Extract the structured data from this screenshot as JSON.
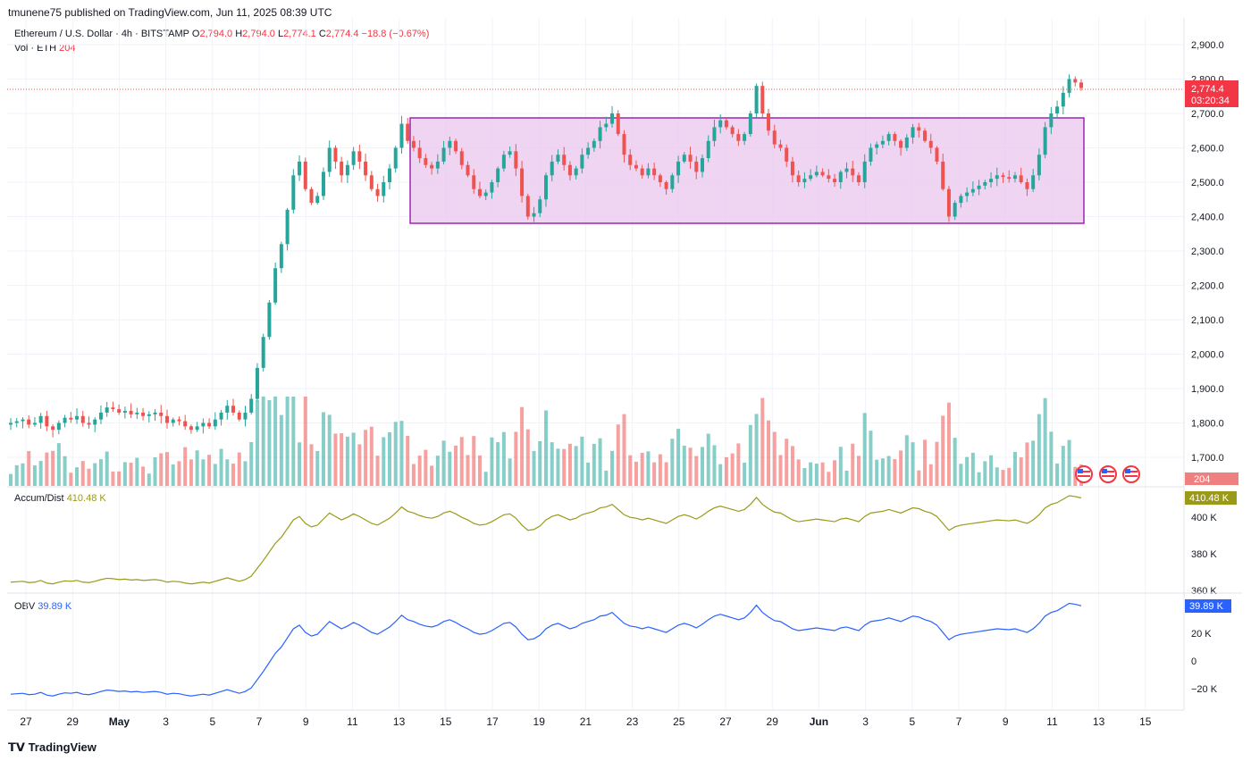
{
  "header": {
    "published": "tmunene75 published on TradingView.com, Jun 11, 2025 08:39 UTC"
  },
  "legend": {
    "symbol": "Ethereum / U.S. Dollar · 4h · BITSTAMP",
    "o_label": "O",
    "o": "2,794.0",
    "h_label": "H",
    "h": "2,794.0",
    "l_label": "L",
    "l": "2,774.1",
    "c_label": "C",
    "c": "2,774.4",
    "change": "−18.8 (−0.67%)",
    "vol_label": "Vol · ETH",
    "vol": "204"
  },
  "price_badge": {
    "price": "2,774.4",
    "countdown": "03:20:34"
  },
  "vol_badge": "204",
  "ad": {
    "label": "Accum/Dist",
    "value": "410.48 K"
  },
  "obv": {
    "label": "OBV",
    "value": "39.89 K"
  },
  "brand": "TradingView",
  "colors": {
    "up": "#26a69a",
    "down": "#ef5350",
    "box_fill": "#e9c7ee",
    "box_stroke": "#9c27b0",
    "ad": "#9a9a18",
    "obv": "#2962ff"
  },
  "chart_data": [
    {
      "type": "candlestick",
      "y_ticks": [
        "2,900.0",
        "2,800.0",
        "2,700.0",
        "2,600.0",
        "2,500.0",
        "2,400.0",
        "2,300.0",
        "2,200.0",
        "2,100.0",
        "2,000.0",
        "1,900.0",
        "1,800.0",
        "1,700.0"
      ],
      "x_ticks": [
        "27",
        "29",
        "May",
        "3",
        "5",
        "7",
        "9",
        "11",
        "13",
        "15",
        "17",
        "19",
        "21",
        "23",
        "25",
        "27",
        "29",
        "Jun",
        "3",
        "5",
        "7",
        "9",
        "11",
        "13",
        "15"
      ],
      "ylim": [
        1650,
        2950
      ],
      "range_box": {
        "x_start": "May 13",
        "x_end": "Jun 11",
        "top": 2690,
        "bottom": 2385
      },
      "last_price": 2774.4,
      "series_close": [
        1800,
        1805,
        1810,
        1795,
        1800,
        1820,
        1790,
        1780,
        1800,
        1815,
        1810,
        1820,
        1800,
        1795,
        1810,
        1830,
        1845,
        1840,
        1830,
        1835,
        1825,
        1830,
        1820,
        1825,
        1830,
        1820,
        1800,
        1810,
        1805,
        1790,
        1780,
        1790,
        1800,
        1790,
        1810,
        1830,
        1850,
        1830,
        1810,
        1830,
        1870,
        1960,
        2050,
        2150,
        2250,
        2320,
        2420,
        2520,
        2560,
        2480,
        2440,
        2460,
        2530,
        2600,
        2560,
        2520,
        2550,
        2590,
        2560,
        2520,
        2480,
        2460,
        2500,
        2540,
        2600,
        2670,
        2620,
        2600,
        2570,
        2550,
        2540,
        2560,
        2600,
        2620,
        2590,
        2550,
        2520,
        2480,
        2460,
        2470,
        2500,
        2540,
        2580,
        2590,
        2540,
        2460,
        2400,
        2410,
        2450,
        2520,
        2560,
        2580,
        2550,
        2520,
        2540,
        2580,
        2600,
        2620,
        2660,
        2670,
        2700,
        2640,
        2580,
        2550,
        2540,
        2520,
        2540,
        2520,
        2500,
        2480,
        2520,
        2560,
        2580,
        2560,
        2530,
        2570,
        2620,
        2660,
        2680,
        2660,
        2640,
        2620,
        2640,
        2700,
        2780,
        2700,
        2650,
        2610,
        2600,
        2560,
        2520,
        2500,
        2510,
        2520,
        2530,
        2520,
        2510,
        2500,
        2530,
        2540,
        2520,
        2500,
        2560,
        2600,
        2610,
        2620,
        2640,
        2620,
        2600,
        2630,
        2660,
        2650,
        2620,
        2600,
        2560,
        2480,
        2400,
        2440,
        2460,
        2470,
        2480,
        2490,
        2500,
        2510,
        2520,
        2515,
        2510,
        2520,
        2500,
        2480,
        2520,
        2580,
        2660,
        2700,
        2720,
        2760,
        2800,
        2790,
        2774
      ]
    },
    {
      "type": "bar",
      "name": "Vol · ETH",
      "max_label": "204"
    },
    {
      "type": "line",
      "name": "Accum/Dist",
      "y_ticks": [
        "400 K",
        "380 K",
        "360 K"
      ],
      "ylim": [
        358,
        418
      ],
      "last": 410.48
    },
    {
      "type": "line",
      "name": "OBV",
      "y_ticks": [
        "20 K",
        "0",
        "−20 K"
      ],
      "ylim": [
        -30,
        45
      ],
      "last": 39.89
    }
  ]
}
